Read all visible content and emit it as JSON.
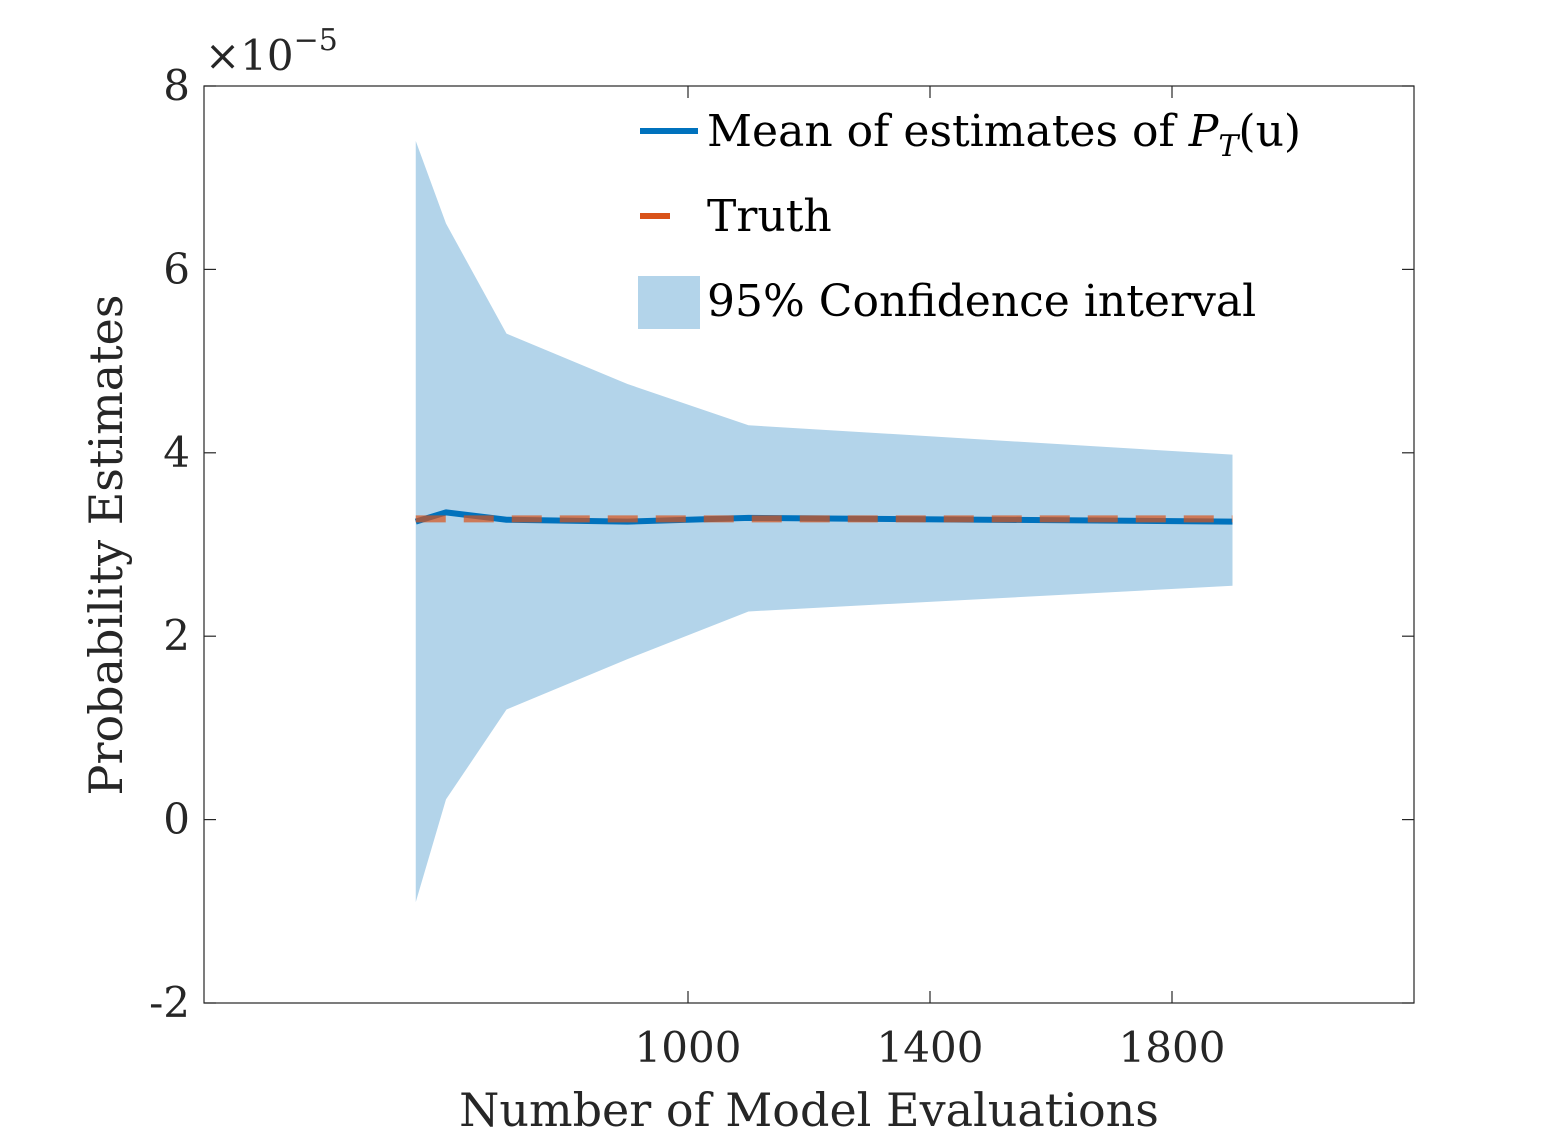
{
  "chart_data": {
    "type": "line",
    "xlabel": "Number of Model Evaluations",
    "ylabel": "Probability Estimates",
    "xlim": [
      200,
      2200
    ],
    "ylim": [
      -2,
      8
    ],
    "y_exponent_prefix": "×10",
    "y_exponent": "−5",
    "xticks": [
      1000,
      1400,
      1800
    ],
    "xtick_labels": [
      "1000",
      "1400",
      "1800"
    ],
    "yticks": [
      -2,
      0,
      2,
      4,
      6,
      8
    ],
    "ytick_labels": [
      "-2",
      "0",
      "2",
      "4",
      "6",
      "8"
    ],
    "x": [
      550,
      600,
      700,
      900,
      1100,
      1900
    ],
    "series": [
      {
        "name": "Mean of estimates of P_T(u)",
        "values": [
          3.25,
          3.35,
          3.27,
          3.25,
          3.29,
          3.25
        ],
        "color": "#0072BD"
      },
      {
        "name": "Truth",
        "values": [
          3.28,
          3.28,
          3.28,
          3.28,
          3.28,
          3.28
        ],
        "color": "#D95319"
      }
    ],
    "ci": {
      "name": "95% Confidence interval",
      "upper": [
        7.4,
        6.5,
        5.3,
        4.75,
        4.3,
        3.98
      ],
      "lower": [
        -0.9,
        0.22,
        1.2,
        1.75,
        2.27,
        2.55
      ],
      "color": "#b3d4ea"
    },
    "legend": {
      "position": "top-right",
      "entries": [
        {
          "label": "Mean of estimates of ",
          "math_main": "P",
          "math_sub": "T",
          "math_tail": "(u)"
        },
        {
          "label": "Truth"
        },
        {
          "label": "95% Confidence interval"
        }
      ]
    }
  }
}
